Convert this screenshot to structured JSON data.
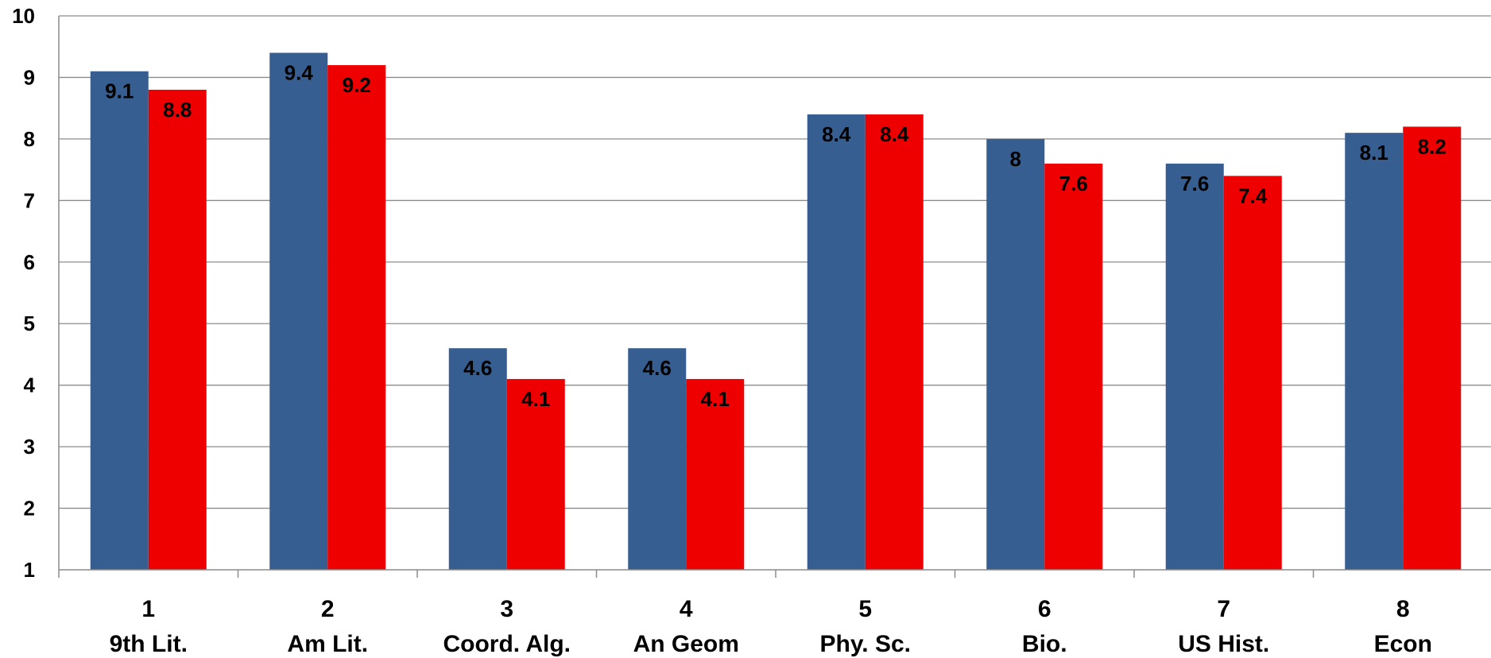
{
  "chart_data": {
    "type": "bar",
    "categories": [
      {
        "number": "1",
        "name": "9th Lit."
      },
      {
        "number": "2",
        "name": "Am Lit."
      },
      {
        "number": "3",
        "name": "Coord. Alg."
      },
      {
        "number": "4",
        "name": "An Geom"
      },
      {
        "number": "5",
        "name": "Phy. Sc."
      },
      {
        "number": "6",
        "name": "Bio."
      },
      {
        "number": "7",
        "name": "US Hist."
      },
      {
        "number": "8",
        "name": "Econ"
      }
    ],
    "series": [
      {
        "color": "#375E91",
        "values": [
          9.1,
          9.4,
          4.6,
          4.6,
          8.4,
          8.0,
          7.6,
          8.1
        ],
        "labels": [
          "9.1",
          "9.4",
          "4.6",
          "4.6",
          "8.4",
          "8",
          "7.6",
          "8.1"
        ]
      },
      {
        "color": "#EE0000",
        "values": [
          8.8,
          9.2,
          4.1,
          4.1,
          8.4,
          7.6,
          7.4,
          8.2
        ],
        "labels": [
          "8.8",
          "9.2",
          "4.1",
          "4.1",
          "8.4",
          "7.6",
          "7.4",
          "8.2"
        ]
      }
    ],
    "yticks": [
      "1",
      "2",
      "3",
      "4",
      "5",
      "6",
      "7",
      "8",
      "9",
      "10"
    ],
    "ylim": [
      1,
      10
    ],
    "grid": true,
    "legend": "none",
    "title": "",
    "xlabel": "",
    "ylabel": ""
  }
}
